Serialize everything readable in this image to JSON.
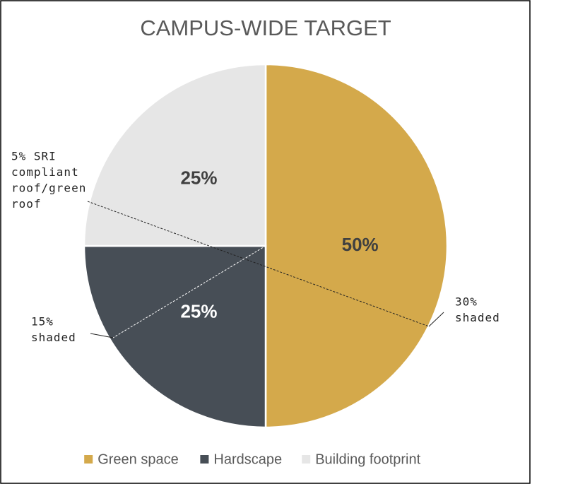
{
  "chart_data": {
    "type": "pie",
    "title": "CAMPUS-WIDE TARGET",
    "categories": [
      "Green space",
      "Hardscape",
      "Building footprint"
    ],
    "values": [
      50,
      25,
      25
    ],
    "value_labels": [
      "50%",
      "25%",
      "25%"
    ],
    "colors": [
      "#d4a94b",
      "#474e56",
      "#e6e6e6"
    ],
    "legend": "bottom",
    "annotations": [
      {
        "text": [
          "5% SRI",
          "compliant",
          "roof/green",
          "roof"
        ]
      },
      {
        "text": [
          "30%",
          "shaded"
        ]
      },
      {
        "text": [
          "15%",
          "shaded"
        ]
      }
    ]
  }
}
